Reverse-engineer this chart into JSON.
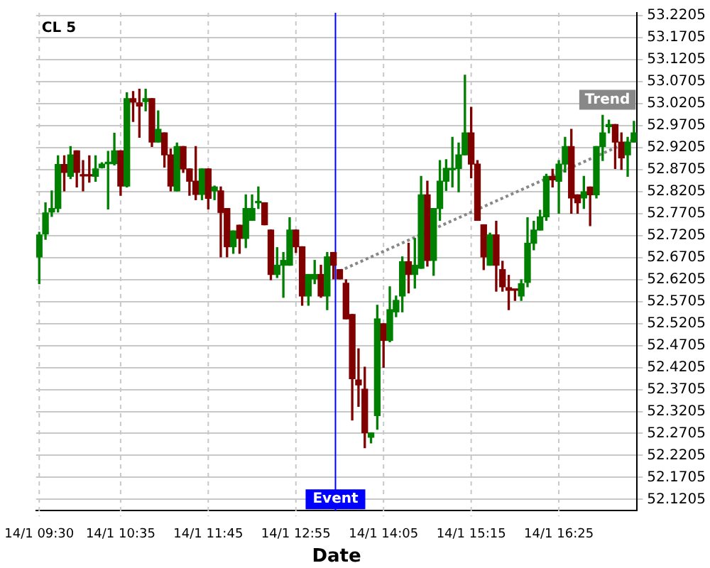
{
  "chart_data": {
    "type": "candlestick",
    "title": "CL 5",
    "xlabel": "Date",
    "categories": [
      "14/1 09:30",
      null,
      null,
      null,
      null,
      null,
      null,
      null,
      null,
      null,
      null,
      null,
      null,
      "14/1 10:35",
      null,
      null,
      null,
      null,
      null,
      null,
      null,
      null,
      null,
      null,
      null,
      null,
      null,
      "14/1 11:45",
      null,
      null,
      null,
      null,
      null,
      null,
      null,
      null,
      null,
      null,
      null,
      null,
      null,
      "14/1 12:55",
      null,
      null,
      null,
      null,
      null,
      null,
      null,
      null,
      null,
      null,
      null,
      null,
      null,
      "14/1 14:05",
      null,
      null,
      null,
      null,
      null,
      null,
      null,
      null,
      null,
      null,
      null,
      null,
      null,
      "14/1 15:15",
      null,
      null,
      null,
      null,
      null,
      null,
      null,
      null,
      null,
      null,
      null,
      null,
      null,
      "14/1 16:25",
      null,
      null,
      null,
      null,
      null,
      null,
      null,
      null,
      null,
      null,
      null,
      null
    ],
    "ohlc": [
      [
        52.672,
        52.728,
        52.611,
        52.722
      ],
      [
        52.724,
        52.795,
        52.712,
        52.772
      ],
      [
        52.774,
        52.822,
        52.764,
        52.782
      ],
      [
        52.782,
        52.902,
        52.774,
        52.882
      ],
      [
        52.882,
        52.902,
        52.822,
        52.864
      ],
      [
        52.855,
        52.923,
        52.85,
        52.904
      ],
      [
        52.913,
        52.913,
        52.831,
        52.864
      ],
      [
        52.857,
        52.891,
        52.822,
        52.856
      ],
      [
        52.857,
        52.902,
        52.842,
        52.856
      ],
      [
        52.855,
        52.902,
        52.844,
        52.872
      ],
      [
        52.875,
        52.886,
        52.874,
        52.883
      ],
      [
        52.884,
        52.912,
        52.781,
        52.885
      ],
      [
        52.884,
        52.953,
        52.881,
        52.913
      ],
      [
        52.913,
        52.913,
        52.812,
        52.833
      ],
      [
        52.833,
        53.045,
        52.831,
        53.032
      ],
      [
        53.032,
        53.048,
        52.98,
        53.024
      ],
      [
        53.022,
        53.053,
        52.944,
        53.015
      ],
      [
        53.025,
        53.053,
        53.004,
        53.032
      ],
      [
        53.032,
        53.032,
        52.923,
        52.933
      ],
      [
        52.933,
        53.004,
        52.933,
        52.962
      ],
      [
        52.954,
        52.954,
        52.876,
        52.904
      ],
      [
        52.904,
        52.917,
        52.822,
        52.833
      ],
      [
        52.822,
        52.931,
        52.822,
        52.923
      ],
      [
        52.923,
        52.923,
        52.864,
        52.872
      ],
      [
        52.872,
        52.872,
        52.812,
        52.844
      ],
      [
        52.844,
        52.923,
        52.802,
        52.814
      ],
      [
        52.814,
        52.872,
        52.802,
        52.872
      ],
      [
        52.872,
        52.872,
        52.781,
        52.805
      ],
      [
        52.822,
        52.833,
        52.802,
        52.831
      ],
      [
        52.822,
        52.831,
        52.672,
        52.773
      ],
      [
        52.782,
        52.782,
        52.672,
        52.695
      ],
      [
        52.695,
        52.731,
        52.68,
        52.731
      ],
      [
        52.744,
        52.744,
        52.68,
        52.714
      ],
      [
        52.714,
        52.813,
        52.693,
        52.782
      ],
      [
        52.755,
        52.813,
        52.755,
        52.782
      ],
      [
        52.795,
        52.831,
        52.782,
        52.797
      ],
      [
        52.795,
        52.795,
        52.745,
        52.745
      ],
      [
        52.733,
        52.733,
        52.62,
        52.632
      ],
      [
        52.632,
        52.693,
        52.625,
        52.653
      ],
      [
        52.653,
        52.682,
        52.58,
        52.664
      ],
      [
        52.653,
        52.761,
        52.653,
        52.733
      ],
      [
        52.733,
        52.733,
        52.682,
        52.695
      ],
      [
        52.695,
        52.695,
        52.562,
        52.583
      ],
      [
        52.583,
        52.632,
        52.562,
        52.632
      ],
      [
        52.622,
        52.664,
        52.611,
        52.632
      ],
      [
        52.632,
        52.653,
        52.58,
        52.583
      ],
      [
        52.583,
        52.682,
        52.552,
        52.672
      ],
      [
        52.682,
        52.682,
        52.622,
        52.653
      ],
      [
        52.643,
        52.643,
        52.622,
        52.622
      ],
      [
        52.612,
        52.62,
        52.531,
        52.531
      ],
      [
        52.541,
        52.541,
        52.301,
        52.395
      ],
      [
        52.392,
        52.463,
        52.332,
        52.381
      ],
      [
        52.371,
        52.421,
        52.238,
        52.272
      ],
      [
        52.262,
        52.272,
        52.249,
        52.272
      ],
      [
        52.311,
        52.562,
        52.28,
        52.531
      ],
      [
        52.52,
        52.52,
        52.421,
        52.482
      ],
      [
        52.482,
        52.604,
        52.479,
        52.552
      ],
      [
        52.547,
        52.583,
        52.536,
        52.573
      ],
      [
        52.583,
        52.672,
        52.547,
        52.661
      ],
      [
        52.661,
        52.703,
        52.59,
        52.632
      ],
      [
        52.632,
        52.714,
        52.601,
        52.653
      ],
      [
        52.646,
        52.855,
        52.646,
        52.813
      ],
      [
        52.813,
        52.844,
        52.651,
        52.664
      ],
      [
        52.664,
        52.782,
        52.63,
        52.782
      ],
      [
        52.782,
        52.891,
        52.755,
        52.844
      ],
      [
        52.844,
        52.893,
        52.823,
        52.873
      ],
      [
        52.87,
        52.944,
        52.831,
        52.873
      ],
      [
        52.873,
        52.931,
        52.82,
        52.904
      ],
      [
        52.904,
        53.085,
        52.904,
        52.954
      ],
      [
        52.954,
        53.012,
        52.852,
        52.883
      ],
      [
        52.883,
        52.891,
        52.755,
        52.755
      ],
      [
        52.745,
        52.745,
        52.643,
        52.672
      ],
      [
        52.653,
        52.726,
        52.653,
        52.722
      ],
      [
        52.722,
        52.753,
        52.594,
        52.653
      ],
      [
        52.643,
        52.662,
        52.594,
        52.604
      ],
      [
        52.602,
        52.63,
        52.552,
        52.596
      ],
      [
        52.597,
        52.597,
        52.573,
        52.596
      ],
      [
        52.583,
        52.62,
        52.573,
        52.611
      ],
      [
        52.614,
        52.761,
        52.604,
        52.703
      ],
      [
        52.703,
        52.753,
        52.688,
        52.733
      ],
      [
        52.733,
        52.778,
        52.733,
        52.763
      ],
      [
        52.763,
        52.86,
        52.755,
        52.855
      ],
      [
        52.855,
        52.871,
        52.831,
        52.847
      ],
      [
        52.844,
        52.891,
        52.771,
        52.883
      ],
      [
        52.883,
        52.944,
        52.865,
        52.923
      ],
      [
        52.923,
        52.962,
        52.771,
        52.806
      ],
      [
        52.813,
        52.813,
        52.771,
        52.795
      ],
      [
        52.806,
        52.855,
        52.782,
        52.82
      ],
      [
        52.831,
        52.831,
        52.743,
        52.813
      ],
      [
        52.813,
        52.923,
        52.806,
        52.923
      ],
      [
        52.923,
        52.994,
        52.891,
        52.954
      ],
      [
        52.968,
        52.983,
        52.954,
        52.973
      ],
      [
        52.973,
        52.973,
        52.873,
        52.933
      ],
      [
        52.933,
        52.954,
        52.871,
        52.897
      ],
      [
        52.904,
        52.944,
        52.855,
        52.933
      ],
      [
        52.933,
        52.98,
        52.933,
        52.954
      ]
    ],
    "colors": [
      "#008000",
      "#008000",
      "#008000",
      "#008000",
      "#800000",
      "#008000",
      "#800000",
      "#800000",
      "#800000",
      "#008000",
      "#008000",
      "#008000",
      "#008000",
      "#800000",
      "#008000",
      "#800000",
      "#800000",
      "#008000",
      "#800000",
      "#008000",
      "#800000",
      "#800000",
      "#008000",
      "#800000",
      "#800000",
      "#800000",
      "#008000",
      "#800000",
      "#008000",
      "#800000",
      "#800000",
      "#008000",
      "#800000",
      "#008000",
      "#008000",
      "#008000",
      "#800000",
      "#800000",
      "#008000",
      "#008000",
      "#008000",
      "#800000",
      "#800000",
      "#008000",
      "#008000",
      "#800000",
      "#008000",
      "#800000",
      "#800000",
      "#800000",
      "#800000",
      "#800000",
      "#800000",
      "#008000",
      "#008000",
      "#800000",
      "#008000",
      "#008000",
      "#008000",
      "#800000",
      "#008000",
      "#008000",
      "#800000",
      "#008000",
      "#008000",
      "#008000",
      "#008000",
      "#008000",
      "#008000",
      "#800000",
      "#800000",
      "#800000",
      "#008000",
      "#800000",
      "#800000",
      "#800000",
      "#800000",
      "#008000",
      "#008000",
      "#008000",
      "#008000",
      "#008000",
      "#800000",
      "#008000",
      "#008000",
      "#800000",
      "#800000",
      "#008000",
      "#800000",
      "#008000",
      "#008000",
      "#008000",
      "#800000",
      "#800000",
      "#008000",
      "#008000"
    ],
    "series": [
      {
        "type": "line",
        "name": "Trend",
        "color": "#888888",
        "line_style": "dotted",
        "values": [
          null,
          null,
          null,
          null,
          null,
          null,
          null,
          null,
          null,
          null,
          null,
          null,
          null,
          null,
          null,
          null,
          null,
          null,
          null,
          null,
          null,
          null,
          null,
          null,
          null,
          null,
          null,
          null,
          null,
          null,
          null,
          null,
          null,
          null,
          null,
          null,
          null,
          null,
          null,
          null,
          null,
          null,
          null,
          null,
          null,
          null,
          null,
          null,
          52.64,
          null,
          null,
          null,
          null,
          null,
          null,
          null,
          null,
          null,
          null,
          null,
          null,
          null,
          null,
          null,
          null,
          null,
          null,
          null,
          null,
          null,
          null,
          null,
          null,
          null,
          null,
          null,
          null,
          null,
          null,
          null,
          null,
          null,
          null,
          null,
          null,
          null,
          null,
          null,
          null,
          null,
          null,
          null,
          null,
          null,
          null,
          52.939
        ]
      }
    ],
    "ylim": [
      52.095,
      53.227
    ],
    "yticks": [
      52.1205,
      52.1705,
      52.2205,
      52.2705,
      52.3205,
      52.3705,
      52.4205,
      52.4705,
      52.5205,
      52.5705,
      52.6205,
      52.6705,
      52.7205,
      52.7705,
      52.8205,
      52.8705,
      52.9205,
      52.9705,
      53.0205,
      53.0705,
      53.1205,
      53.1705,
      53.2205
    ],
    "annotations": [
      "Event"
    ],
    "grid": true
  }
}
